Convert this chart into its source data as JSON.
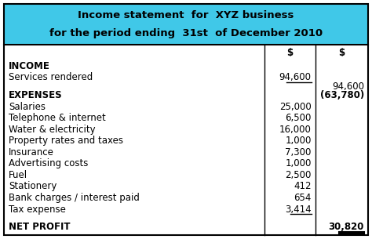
{
  "title_line1": "Income statement  for  XYZ business",
  "title_line2_pre": "for the period ending  31",
  "title_line2_super": "st",
  "title_line2_post": "  of December 2010",
  "header_bg": "#40C8E8",
  "table_bg": "#FFFFFF",
  "border_color": "#000000",
  "col1_header": "$",
  "col2_header": "$",
  "rows": [
    {
      "label": "INCOME",
      "val1": "",
      "val2": "",
      "label_bold": true,
      "val2_paren": false,
      "underline1": false,
      "underline2": false,
      "spacer": false
    },
    {
      "label": "Services rendered",
      "val1": "94,600",
      "val2": "",
      "label_bold": false,
      "val2_paren": false,
      "underline1": true,
      "underline2": false,
      "spacer": false
    },
    {
      "label": "",
      "val1": "",
      "val2": "94,600",
      "label_bold": false,
      "val2_paren": false,
      "underline1": false,
      "underline2": false,
      "spacer": true
    },
    {
      "label": "EXPENSES",
      "val1": "",
      "val2": "(63,780)",
      "label_bold": true,
      "val2_paren": false,
      "underline1": false,
      "underline2": false,
      "spacer": false
    },
    {
      "label": "Salaries",
      "val1": "25,000",
      "val2": "",
      "label_bold": false,
      "val2_paren": false,
      "underline1": false,
      "underline2": false,
      "spacer": false
    },
    {
      "label": "Telephone & internet",
      "val1": "6,500",
      "val2": "",
      "label_bold": false,
      "val2_paren": false,
      "underline1": false,
      "underline2": false,
      "spacer": false
    },
    {
      "label": "Water & electricity",
      "val1": "16,000",
      "val2": "",
      "label_bold": false,
      "val2_paren": false,
      "underline1": false,
      "underline2": false,
      "spacer": false
    },
    {
      "label": "Property rates and taxes",
      "val1": "1,000",
      "val2": "",
      "label_bold": false,
      "val2_paren": false,
      "underline1": false,
      "underline2": false,
      "spacer": false
    },
    {
      "label": "Insurance",
      "val1": "7,300",
      "val2": "",
      "label_bold": false,
      "val2_paren": false,
      "underline1": false,
      "underline2": false,
      "spacer": false
    },
    {
      "label": "Advertising costs",
      "val1": "1,000",
      "val2": "",
      "label_bold": false,
      "val2_paren": false,
      "underline1": false,
      "underline2": false,
      "spacer": false
    },
    {
      "label": "Fuel",
      "val1": "2,500",
      "val2": "",
      "label_bold": false,
      "val2_paren": false,
      "underline1": false,
      "underline2": false,
      "spacer": false
    },
    {
      "label": "Stationery",
      "val1": "412",
      "val2": "",
      "label_bold": false,
      "val2_paren": false,
      "underline1": false,
      "underline2": false,
      "spacer": false
    },
    {
      "label": "Bank charges / interest paid",
      "val1": "654",
      "val2": "",
      "label_bold": false,
      "val2_paren": false,
      "underline1": false,
      "underline2": false,
      "spacer": false
    },
    {
      "label": "Tax expense",
      "val1": "3,414",
      "val2": "",
      "label_bold": false,
      "val2_paren": false,
      "underline1": true,
      "underline2": false,
      "spacer": false
    },
    {
      "label": "",
      "val1": "",
      "val2": "",
      "label_bold": false,
      "val2_paren": false,
      "underline1": false,
      "underline2": false,
      "spacer": true
    },
    {
      "label": "NET PROFIT",
      "val1": "",
      "val2": "30,820",
      "label_bold": true,
      "val2_paren": false,
      "underline1": false,
      "underline2": true,
      "spacer": false
    }
  ],
  "font_size": 8.5,
  "title_font_size": 9.5
}
